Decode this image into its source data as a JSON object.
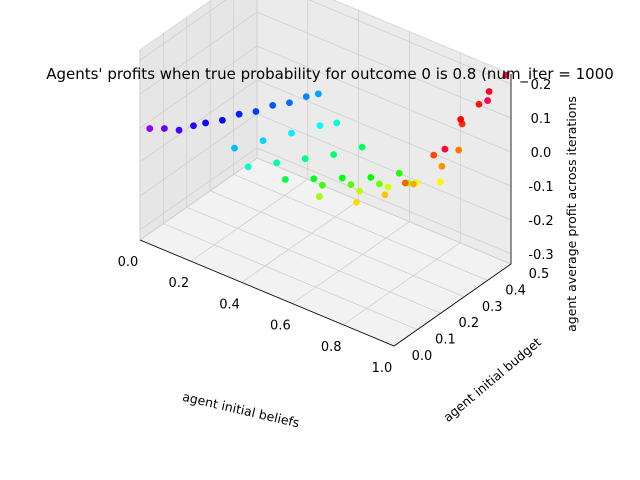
{
  "chart_data": {
    "type": "scatter",
    "projection": "3d",
    "title": "Agents' profits when true probability for outcome 0 is 0.8 (num_iter = 1000",
    "xlabel": "agent initial beliefs",
    "ylabel": "agent initial budget",
    "zlabel": "agent average profit across iterations",
    "xlim": [
      0.0,
      1.0
    ],
    "ylim": [
      0.0,
      0.5
    ],
    "zlim": [
      -0.33,
      0.23
    ],
    "xticks": [
      "0.0",
      "0.2",
      "0.4",
      "0.6",
      "0.8",
      "1.0"
    ],
    "yticks": [
      "0.0",
      "0.1",
      "0.2",
      "0.3",
      "0.4",
      "0.5"
    ],
    "zticks": [
      "-0.3",
      "-0.2",
      "-0.1",
      "0.0",
      "0.1",
      "0.2"
    ],
    "grid": true,
    "colormap": "hsv, hue by agent initial beliefs",
    "profit_model": "profit ≈ 2.5 × budget × (belief − 0.8)² shape, rising steeply toward belief 1.0",
    "points": [
      [
        0.02,
        0.02,
        -0.005
      ],
      [
        0.05,
        0.05,
        -0.01
      ],
      [
        0.08,
        0.08,
        -0.02
      ],
      [
        0.1,
        0.12,
        -0.02
      ],
      [
        0.12,
        0.15,
        -0.02
      ],
      [
        0.14,
        0.2,
        -0.03
      ],
      [
        0.16,
        0.25,
        -0.03
      ],
      [
        0.18,
        0.3,
        -0.04
      ],
      [
        0.2,
        0.35,
        -0.04
      ],
      [
        0.22,
        0.4,
        -0.05
      ],
      [
        0.24,
        0.45,
        -0.05
      ],
      [
        0.26,
        0.48,
        -0.05
      ],
      [
        0.28,
        0.1,
        -0.02
      ],
      [
        0.3,
        0.2,
        -0.04
      ],
      [
        0.32,
        0.3,
        -0.06
      ],
      [
        0.34,
        0.4,
        -0.08
      ],
      [
        0.36,
        0.45,
        -0.09
      ],
      [
        0.38,
        0.05,
        -0.02
      ],
      [
        0.4,
        0.15,
        -0.05
      ],
      [
        0.42,
        0.25,
        -0.08
      ],
      [
        0.44,
        0.35,
        -0.11
      ],
      [
        0.46,
        0.45,
        -0.13
      ],
      [
        0.48,
        0.1,
        -0.05
      ],
      [
        0.5,
        0.2,
        -0.09
      ],
      [
        0.52,
        0.3,
        -0.13
      ],
      [
        0.54,
        0.4,
        -0.17
      ],
      [
        0.56,
        0.5,
        -0.2
      ],
      [
        0.58,
        0.15,
        -0.06
      ],
      [
        0.6,
        0.25,
        -0.1
      ],
      [
        0.62,
        0.35,
        -0.14
      ],
      [
        0.64,
        0.45,
        -0.18
      ],
      [
        0.66,
        0.05,
        -0.02
      ],
      [
        0.68,
        0.2,
        -0.07
      ],
      [
        0.7,
        0.3,
        -0.1
      ],
      [
        0.72,
        0.4,
        -0.13
      ],
      [
        0.74,
        0.48,
        -0.16
      ],
      [
        0.76,
        0.1,
        -0.03
      ],
      [
        0.78,
        0.2,
        -0.05
      ],
      [
        0.8,
        0.3,
        -0.06
      ],
      [
        0.82,
        0.4,
        -0.05
      ],
      [
        0.84,
        0.45,
        -0.02
      ],
      [
        0.86,
        0.2,
        0.01
      ],
      [
        0.88,
        0.3,
        0.05
      ],
      [
        0.9,
        0.4,
        0.1
      ],
      [
        0.92,
        0.45,
        0.14
      ],
      [
        0.94,
        0.35,
        0.15
      ],
      [
        0.96,
        0.45,
        0.19
      ],
      [
        0.98,
        0.5,
        0.22
      ],
      [
        1.0,
        0.4,
        0.2
      ],
      [
        0.97,
        0.25,
        0.12
      ]
    ]
  }
}
